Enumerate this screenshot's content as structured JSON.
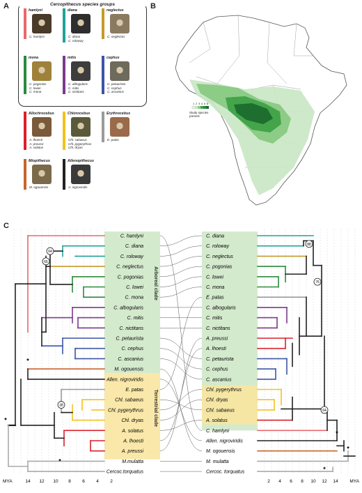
{
  "panels": {
    "a": "A",
    "b": "B",
    "c": "C"
  },
  "species_groups_title": "Cercopithecus species groups",
  "groups_in_box": [
    {
      "name": "hamlyni",
      "color": "#e8686e",
      "species": [
        "C. hamlyni"
      ]
    },
    {
      "name": "diana",
      "color": "#1fa39a",
      "species": [
        "C. diana",
        "C. roloway"
      ]
    },
    {
      "name": "neglectus",
      "color": "#c49a2a",
      "species": [
        "C. neglectus"
      ]
    },
    {
      "name": "mona",
      "color": "#2d8a3c",
      "species": [
        "C. pogonias",
        "C. lowei",
        "C. mona"
      ]
    },
    {
      "name": "mitis",
      "color": "#7b3a8e",
      "species": [
        "C. albogularis",
        "C. mitis",
        "C. nictitans"
      ]
    },
    {
      "name": "cephus",
      "color": "#3a55a5",
      "species": [
        "C. petaurista",
        "C. cephus",
        "C. ascanius"
      ]
    }
  ],
  "genera": [
    {
      "name": "Allochrocebus",
      "color": "#d9202a",
      "species": [
        "A. lhoesti",
        "A. preussi",
        "A. solatus"
      ]
    },
    {
      "name": "Chlorocebus",
      "color": "#f3c21c",
      "species": [
        "Chl. sabaeus",
        "Chl. pygerythrus",
        "Chl. dryas"
      ]
    },
    {
      "name": "Erythrocebus",
      "color": "#9a9a9a",
      "species": [
        "E. patas"
      ]
    },
    {
      "name": "Miopithecus",
      "color": "#c8652a",
      "species": [
        "M. ogouensis"
      ]
    },
    {
      "name": "Allenopithecus",
      "color": "#222222",
      "species": [
        "A. nigroviridis"
      ]
    }
  ],
  "map_legend": {
    "ticks": [
      "1",
      "2",
      "3",
      "4",
      "5",
      "6"
    ],
    "label": "Study species present"
  },
  "tree": {
    "left_taxa": [
      "C. hamlyni",
      "C. diana",
      "C. roloway",
      "C. neglectus",
      "C. pogonias",
      "C. lowei",
      "C. mona",
      "C. albogularis",
      "C. mitis",
      "C. nictitans",
      "C. petaurista",
      "C. cephus",
      "C. ascanius",
      "M. ogouensis",
      "Allen. nigroviridis",
      "E. patas",
      "Chl. sabaeus",
      "Chl. pygerythrus",
      "Chl. dryas",
      "A. solatus",
      "A. lhoesti",
      "A. preussi",
      "M.mulatta",
      "Cercoc.torquatus"
    ],
    "right_taxa": [
      "C. diana",
      "C. roloway",
      "C. neglectus",
      "C. pogonias",
      "C. lowei",
      "C. mona",
      "E. patas",
      "C. albogularis",
      "C. mitis",
      "C. nictitans",
      "A. preussi",
      "A. lhoesti",
      "C. petaurista",
      "C. cephus",
      "C. ascanius",
      "Chl. pygerythrus",
      "Chl. dryas",
      "Chl. sabaeus",
      "A. solatus",
      "C. hamlyni",
      "Allen. nigroviridis",
      "M. ogouensis",
      "M. mulatta",
      "Cercoc. torquatus"
    ],
    "arboreal_label": "Arboreal clade",
    "terrestrial_label": "Terrestrial clade",
    "node_labels_left": [
      "64",
      "65",
      "38"
    ],
    "node_labels_right": [
      "88",
      "76",
      "64"
    ],
    "star": "*",
    "axis_left": {
      "label": "MYA",
      "ticks": [
        "14",
        "12",
        "10",
        "8",
        "6",
        "4",
        "2"
      ]
    },
    "axis_right": {
      "label": "MYA",
      "ticks": [
        "2",
        "4",
        "6",
        "8",
        "10",
        "12",
        "14"
      ]
    }
  }
}
